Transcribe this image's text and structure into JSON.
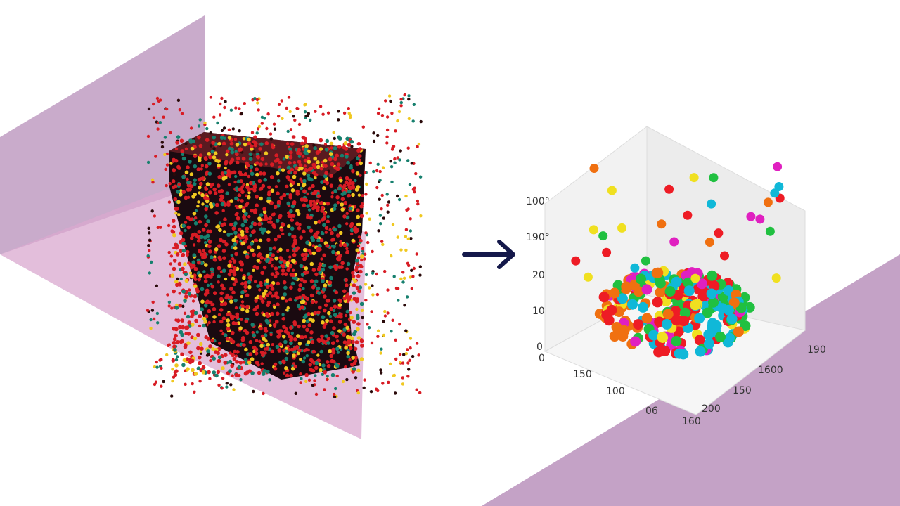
{
  "vertical_axis_labels": [
    "100°",
    "190°",
    "20",
    "10",
    "0"
  ],
  "front_axis_labels": [
    "0",
    "150",
    "100",
    "06"
  ],
  "side_axis_labels": [
    "160",
    "200",
    "150",
    "1600",
    "190"
  ]
}
